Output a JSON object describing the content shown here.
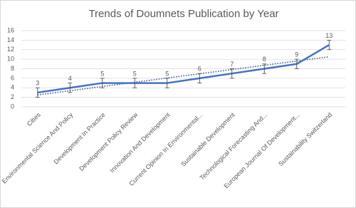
{
  "chart_data": {
    "type": "line",
    "title": "Trends of Doumnets Publication by Year",
    "categories": [
      "Cities",
      "Environmental Science And Policy",
      "Development In Practice",
      "Development Policy Review",
      "Innovation And Development",
      "Current Opinion In Environmental...",
      "Sustainable Development",
      "Technological Forecasting And...",
      "European Journal Of Development...",
      "Sustainability Switzerland"
    ],
    "values": [
      3,
      4,
      5,
      5,
      5,
      6,
      7,
      8,
      9,
      13
    ],
    "errors": [
      1,
      1,
      1,
      1,
      1,
      1,
      1,
      1,
      1,
      1
    ],
    "color": "#4472c4",
    "trendline": {
      "style": "dotted",
      "color": "#2f5597",
      "values": [
        2.49,
        10.51
      ]
    },
    "ylim": [
      0,
      16
    ],
    "yticks": [
      0,
      2,
      4,
      6,
      8,
      10,
      12,
      14,
      16
    ],
    "grid": true
  }
}
